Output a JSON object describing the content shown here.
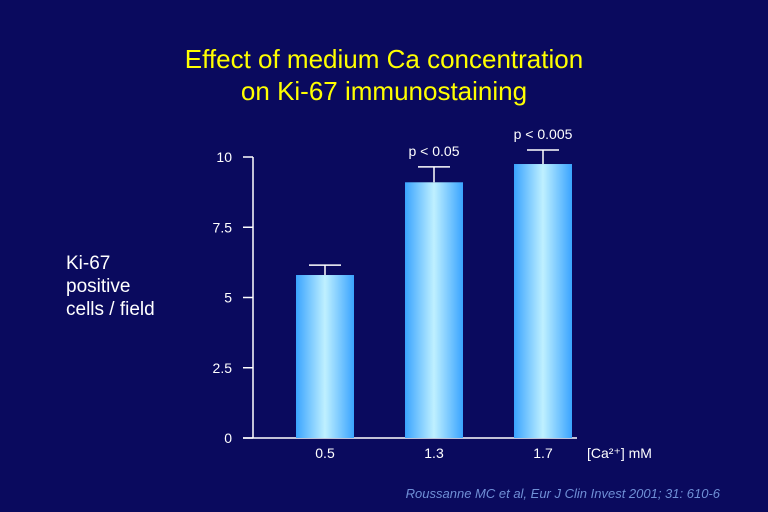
{
  "slide": {
    "title_line1": "Effect of medium Ca concentration",
    "title_line2": "on Ki-67 immunostaining",
    "ylabel_line1": "Ki-67",
    "ylabel_line2": "positive",
    "ylabel_line3": "cells / field",
    "citation": "Roussanne MC et al, Eur J Clin Invest 2001; 31: 610-6"
  },
  "colors": {
    "background": "#0a0a5e",
    "title": "#ffff00",
    "bar_edge": "#3aa4ff",
    "bar_center": "#bff0ff",
    "axis": "#ffffff",
    "citation": "#6f8fd6"
  },
  "chart_data": {
    "type": "bar",
    "categories": [
      "0.5",
      "1.3",
      "1.7"
    ],
    "values": [
      5.8,
      9.1,
      9.75
    ],
    "errors": [
      0.35,
      0.55,
      0.5
    ],
    "annotations": [
      "",
      "p < 0.05",
      "p < 0.005"
    ],
    "ylim": [
      0,
      10
    ],
    "yticks": [
      "0",
      "2.5",
      "5",
      "7.5",
      "10"
    ],
    "xlabel": "[Ca²⁺] mM",
    "ylabel": "Ki-67 positive cells / field",
    "title": "Effect of medium Ca concentration on Ki-67 immunostaining",
    "grid": false
  }
}
